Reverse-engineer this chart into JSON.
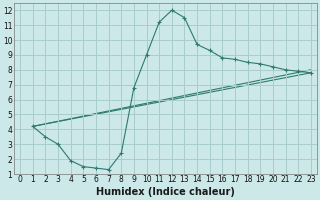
{
  "xlabel": "Humidex (Indice chaleur)",
  "bg_color": "#cce8e8",
  "grid_color": "#a8cccc",
  "line_color": "#2d7a6e",
  "xlim": [
    -0.5,
    23.5
  ],
  "ylim": [
    1,
    12.5
  ],
  "xticks": [
    0,
    1,
    2,
    3,
    4,
    5,
    6,
    7,
    8,
    9,
    10,
    11,
    12,
    13,
    14,
    15,
    16,
    17,
    18,
    19,
    20,
    21,
    22,
    23
  ],
  "yticks": [
    1,
    2,
    3,
    4,
    5,
    6,
    7,
    8,
    9,
    10,
    11,
    12
  ],
  "curve1_x": [
    1,
    2,
    3,
    4,
    5,
    6,
    7,
    8,
    9,
    10,
    11,
    12,
    13,
    14,
    15,
    16,
    17,
    18,
    19,
    20,
    21,
    22,
    23
  ],
  "curve1_y": [
    4.2,
    3.5,
    3.0,
    1.9,
    1.5,
    1.4,
    1.3,
    2.4,
    6.8,
    9.0,
    11.2,
    12.0,
    11.5,
    9.7,
    9.3,
    8.8,
    8.7,
    8.5,
    8.4,
    8.2,
    8.0,
    7.9,
    7.8
  ],
  "curve2_x": [
    1,
    23
  ],
  "curve2_y": [
    4.2,
    7.8
  ],
  "curve3_x": [
    1,
    23
  ],
  "curve3_y": [
    4.2,
    7.8
  ],
  "tick_fontsize": 5.5,
  "label_fontsize": 7
}
